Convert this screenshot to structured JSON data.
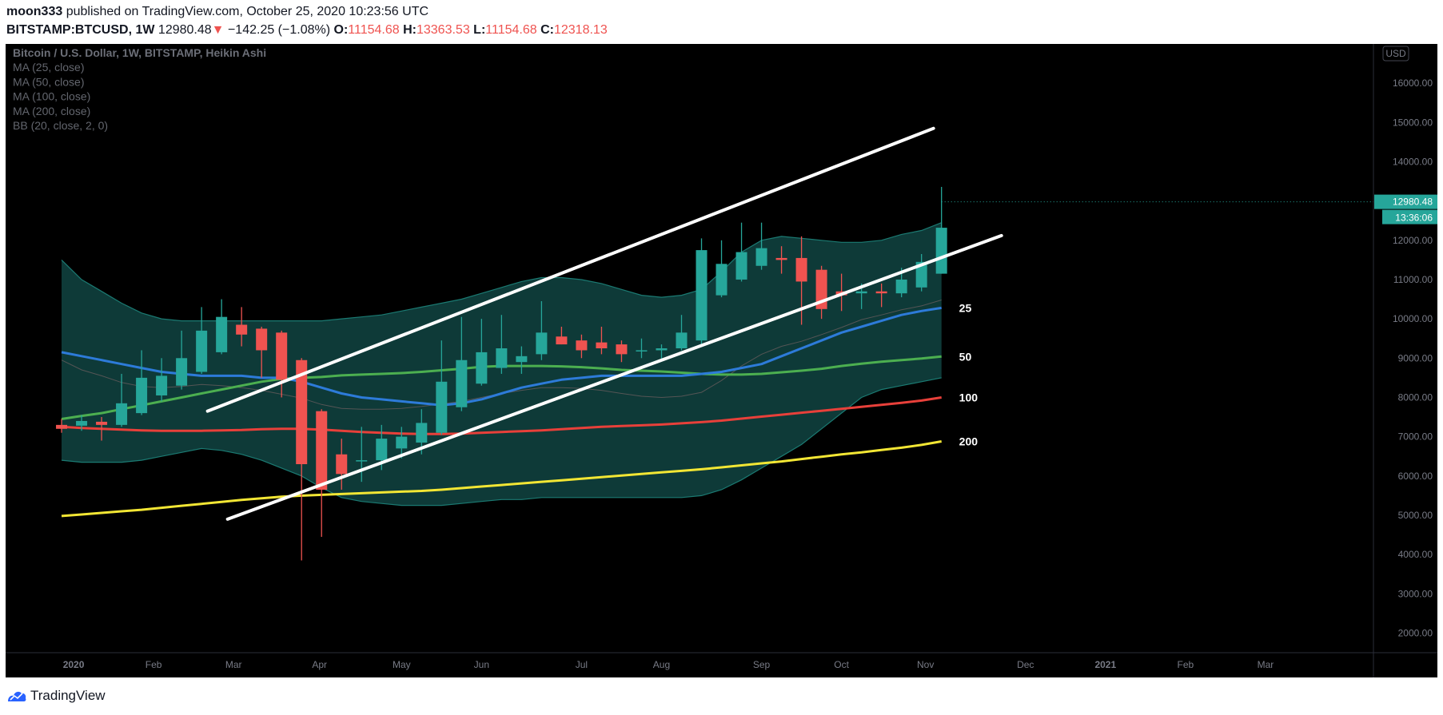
{
  "header": {
    "author": "moon333",
    "published_text": "published on TradingView.com, October 25, 2020 10:23:56 UTC",
    "symbol": "BITSTAMP:BTCUSD, 1W",
    "last": "12980.48",
    "arrow": "▼",
    "change": "−142.25 (−1.08%)",
    "o_label": "O:",
    "o_value": "11154.68",
    "h_label": "H:",
    "h_value": "13363.53",
    "l_label": "L:",
    "l_value": "11154.68",
    "c_label": "C:",
    "c_value": "12318.13"
  },
  "legend": [
    "Bitcoin / U.S. Dollar, 1W, BITSTAMP, Heikin Ashi",
    "MA (25, close)",
    "MA (50, close)",
    "MA (100, close)",
    "MA (200, close)",
    "BB (20, close, 2, 0)"
  ],
  "footer": {
    "brand": "TradingView"
  },
  "colors": {
    "background": "#000000",
    "bull": "#26a69a",
    "bear": "#ef5350",
    "ma25": "#2d7bd9",
    "ma50": "#4caf50",
    "ma100": "#e8403a",
    "ma200": "#f2e634",
    "bb_fill": "#0e3a38",
    "bb_edge": "#1b7a72",
    "bb_mid": "#555555",
    "trendline": "#ffffff"
  },
  "chart_data": {
    "type": "candlestick",
    "currency": "USD",
    "ylim": [
      1500,
      17000
    ],
    "y_ticks": [
      "2000.00",
      "3000.00",
      "4000.00",
      "5000.00",
      "6000.00",
      "7000.00",
      "8000.00",
      "9000.00",
      "10000.00",
      "11000.00",
      "12000.00",
      "13000.00",
      "14000.00",
      "15000.00",
      "16000.00"
    ],
    "x_labels": [
      "2020",
      "Feb",
      "Mar",
      "Apr",
      "May",
      "Jun",
      "Jul",
      "Aug",
      "Sep",
      "Oct",
      "Nov",
      "Dec",
      "2021",
      "Feb",
      "Mar"
    ],
    "x_label_weeks": [
      0.6,
      4.6,
      8.6,
      12.9,
      17,
      21,
      26,
      30,
      35,
      39,
      43.2,
      48.2,
      52.2,
      56.2,
      60.2
    ],
    "x_range": [
      -2.8,
      65.6
    ],
    "price_label": "12980.48",
    "time_label": "13:36:06",
    "candles": [
      {
        "o": 7300,
        "h": 7450,
        "l": 7100,
        "c": 7200
      },
      {
        "o": 7280,
        "h": 7550,
        "l": 7150,
        "c": 7400
      },
      {
        "o": 7380,
        "h": 7500,
        "l": 6900,
        "c": 7300
      },
      {
        "o": 7300,
        "h": 8600,
        "l": 7250,
        "c": 7850
      },
      {
        "o": 7600,
        "h": 9200,
        "l": 7550,
        "c": 8500
      },
      {
        "o": 8050,
        "h": 9000,
        "l": 7900,
        "c": 8550
      },
      {
        "o": 8300,
        "h": 9700,
        "l": 8200,
        "c": 9000
      },
      {
        "o": 8650,
        "h": 10300,
        "l": 8600,
        "c": 9700
      },
      {
        "o": 9150,
        "h": 10500,
        "l": 9100,
        "c": 10050
      },
      {
        "o": 9850,
        "h": 10300,
        "l": 9300,
        "c": 9600
      },
      {
        "o": 9750,
        "h": 9800,
        "l": 8500,
        "c": 9200
      },
      {
        "o": 9650,
        "h": 9700,
        "l": 8000,
        "c": 8450
      },
      {
        "o": 8950,
        "h": 9000,
        "l": 3850,
        "c": 6300
      },
      {
        "o": 7650,
        "h": 7700,
        "l": 4450,
        "c": 5650
      },
      {
        "o": 6550,
        "h": 6950,
        "l": 5650,
        "c": 6050
      },
      {
        "o": 6400,
        "h": 7250,
        "l": 5850,
        "c": 6400
      },
      {
        "o": 6400,
        "h": 7300,
        "l": 6150,
        "c": 6950
      },
      {
        "o": 6700,
        "h": 7250,
        "l": 6450,
        "c": 7000
      },
      {
        "o": 6850,
        "h": 7700,
        "l": 6550,
        "c": 7350
      },
      {
        "o": 7100,
        "h": 9450,
        "l": 7050,
        "c": 8400
      },
      {
        "o": 7750,
        "h": 10050,
        "l": 7650,
        "c": 8950
      },
      {
        "o": 8350,
        "h": 10000,
        "l": 8300,
        "c": 9150
      },
      {
        "o": 8750,
        "h": 10100,
        "l": 8600,
        "c": 9250
      },
      {
        "o": 8900,
        "h": 9300,
        "l": 8600,
        "c": 9050
      },
      {
        "o": 9100,
        "h": 10450,
        "l": 8950,
        "c": 9650
      },
      {
        "o": 9550,
        "h": 9800,
        "l": 9350,
        "c": 9350
      },
      {
        "o": 9450,
        "h": 9600,
        "l": 9000,
        "c": 9200
      },
      {
        "o": 9400,
        "h": 9800,
        "l": 9100,
        "c": 9250
      },
      {
        "o": 9350,
        "h": 9450,
        "l": 8900,
        "c": 9100
      },
      {
        "o": 9200,
        "h": 9500,
        "l": 9000,
        "c": 9200
      },
      {
        "o": 9200,
        "h": 9350,
        "l": 8950,
        "c": 9250
      },
      {
        "o": 9250,
        "h": 10100,
        "l": 9200,
        "c": 9650
      },
      {
        "o": 9450,
        "h": 12050,
        "l": 9350,
        "c": 11750
      },
      {
        "o": 10600,
        "h": 12000,
        "l": 10550,
        "c": 11400
      },
      {
        "o": 11000,
        "h": 12450,
        "l": 10950,
        "c": 11700
      },
      {
        "o": 11350,
        "h": 12450,
        "l": 11250,
        "c": 11800
      },
      {
        "o": 11550,
        "h": 11850,
        "l": 11150,
        "c": 11500
      },
      {
        "o": 11550,
        "h": 12100,
        "l": 9850,
        "c": 10950
      },
      {
        "o": 11250,
        "h": 11350,
        "l": 10000,
        "c": 10250
      },
      {
        "o": 10700,
        "h": 11150,
        "l": 10200,
        "c": 10600
      },
      {
        "o": 10650,
        "h": 10900,
        "l": 10250,
        "c": 10700
      },
      {
        "o": 10700,
        "h": 10900,
        "l": 10300,
        "c": 10650
      },
      {
        "o": 10650,
        "h": 11300,
        "l": 10550,
        "c": 11000
      },
      {
        "o": 10800,
        "h": 11650,
        "l": 10700,
        "c": 11450
      },
      {
        "o": 11150,
        "h": 13360,
        "l": 11150,
        "c": 12320
      }
    ],
    "series": [
      {
        "name": "MA (25, close)",
        "label": "25",
        "values": [
          9150,
          9050,
          8950,
          8850,
          8750,
          8650,
          8600,
          8550,
          8550,
          8550,
          8500,
          8500,
          8400,
          8250,
          8100,
          8000,
          7950,
          7900,
          7850,
          7800,
          7850,
          7950,
          8100,
          8250,
          8350,
          8450,
          8500,
          8550,
          8550,
          8550,
          8550,
          8550,
          8600,
          8650,
          8750,
          8850,
          9050,
          9250,
          9450,
          9650,
          9800,
          9950,
          10100,
          10200,
          10280
        ]
      },
      {
        "name": "MA (50, close)",
        "label": "50",
        "values": [
          7450,
          7530,
          7600,
          7700,
          7800,
          7900,
          8000,
          8100,
          8200,
          8300,
          8400,
          8470,
          8500,
          8520,
          8560,
          8580,
          8600,
          8620,
          8650,
          8690,
          8730,
          8780,
          8800,
          8800,
          8800,
          8790,
          8770,
          8740,
          8700,
          8680,
          8660,
          8630,
          8600,
          8580,
          8580,
          8600,
          8640,
          8680,
          8730,
          8800,
          8860,
          8910,
          8950,
          8990,
          9040
        ]
      },
      {
        "name": "MA (100, close)",
        "label": "100",
        "values": [
          7250,
          7220,
          7200,
          7180,
          7160,
          7150,
          7150,
          7150,
          7160,
          7170,
          7190,
          7200,
          7200,
          7180,
          7150,
          7120,
          7100,
          7080,
          7070,
          7070,
          7080,
          7100,
          7120,
          7140,
          7160,
          7190,
          7220,
          7250,
          7270,
          7290,
          7310,
          7340,
          7370,
          7410,
          7460,
          7510,
          7560,
          7610,
          7660,
          7710,
          7760,
          7810,
          7860,
          7920,
          8000
        ]
      },
      {
        "name": "MA (200, close)",
        "label": "200",
        "values": [
          4980,
          5020,
          5060,
          5100,
          5140,
          5190,
          5240,
          5290,
          5340,
          5390,
          5430,
          5470,
          5500,
          5520,
          5540,
          5560,
          5580,
          5600,
          5620,
          5650,
          5690,
          5730,
          5770,
          5810,
          5850,
          5890,
          5930,
          5970,
          6010,
          6050,
          6090,
          6130,
          6170,
          6220,
          6270,
          6320,
          6370,
          6430,
          6490,
          6550,
          6600,
          6660,
          6720,
          6790,
          6880
        ]
      },
      {
        "name": "BB upper",
        "values": [
          11500,
          11000,
          10700,
          10400,
          10150,
          10000,
          9950,
          9950,
          9950,
          9950,
          9950,
          9950,
          9950,
          9950,
          10000,
          10050,
          10100,
          10200,
          10300,
          10400,
          10500,
          10650,
          10800,
          10950,
          11050,
          11050,
          11000,
          10900,
          10750,
          10600,
          10550,
          10600,
          10750,
          11200,
          11700,
          12000,
          12100,
          12050,
          12000,
          11950,
          11950,
          12000,
          12150,
          12250,
          12450
        ]
      },
      {
        "name": "BB lower",
        "values": [
          6400,
          6350,
          6350,
          6350,
          6400,
          6500,
          6600,
          6700,
          6650,
          6550,
          6400,
          6200,
          6000,
          5700,
          5450,
          5350,
          5300,
          5250,
          5250,
          5250,
          5300,
          5350,
          5400,
          5400,
          5450,
          5450,
          5450,
          5450,
          5450,
          5450,
          5450,
          5450,
          5500,
          5650,
          5900,
          6200,
          6500,
          6800,
          7200,
          7600,
          8000,
          8200,
          8300,
          8400,
          8500
        ]
      },
      {
        "name": "BB basis",
        "values": [
          8950,
          8700,
          8550,
          8380,
          8280,
          8250,
          8280,
          8330,
          8300,
          8250,
          8180,
          8080,
          7980,
          7820,
          7720,
          7700,
          7700,
          7720,
          7770,
          7830,
          7900,
          8000,
          8100,
          8180,
          8250,
          8250,
          8230,
          8180,
          8100,
          8030,
          8000,
          8030,
          8130,
          8430,
          8800,
          9100,
          9300,
          9430,
          9600,
          9780,
          9980,
          10100,
          10230,
          10330,
          10480
        ]
      }
    ],
    "trendlines": [
      {
        "x1": 7.3,
        "y1": 7650,
        "x2": 43.6,
        "y2": 14850
      },
      {
        "x1": 8.3,
        "y1": 4900,
        "x2": 47,
        "y2": 12120
      }
    ]
  }
}
